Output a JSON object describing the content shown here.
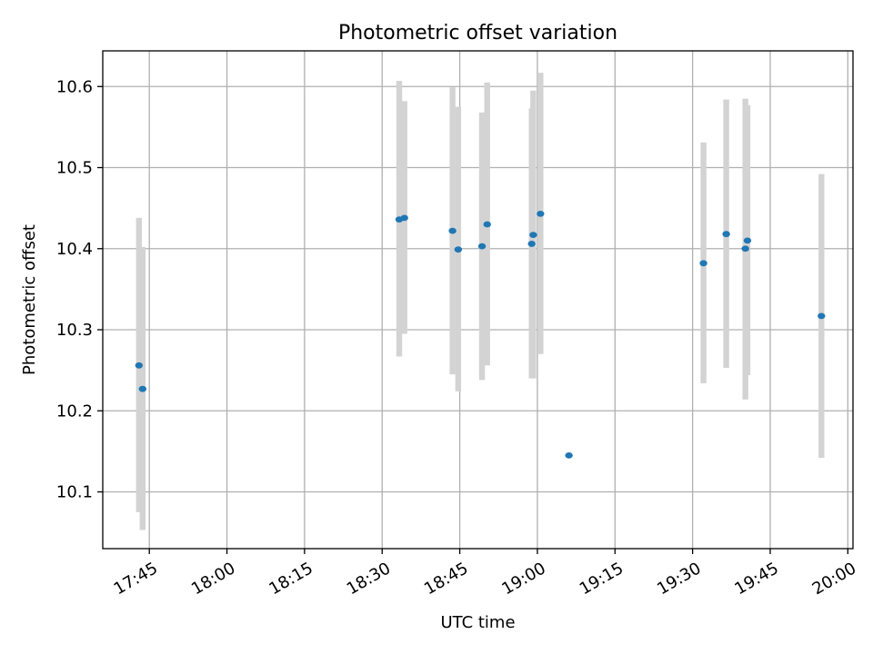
{
  "chart_data": {
    "type": "scatter",
    "title": "Photometric offset variation",
    "xlabel": "UTC time",
    "ylabel": "Photometric offset",
    "grid": true,
    "x_ticks": [
      "17:45",
      "18:00",
      "18:15",
      "18:30",
      "18:45",
      "19:00",
      "19:15",
      "19:30",
      "19:45",
      "20:00"
    ],
    "y_ticks": [
      10.1,
      10.2,
      10.3,
      10.4,
      10.5,
      10.6
    ],
    "xlim": [
      "17:36",
      "20:01"
    ],
    "ylim": [
      10.03,
      10.644
    ],
    "colors": {
      "points": "#1f77b4",
      "errorbars": "#d3d3d3",
      "grid": "#b0b0b0"
    },
    "points": [
      {
        "x": "17:43",
        "y": 10.256,
        "y_low": 10.075,
        "y_high": 10.438
      },
      {
        "x": "17:43.7",
        "y": 10.227,
        "y_low": 10.053,
        "y_high": 10.402
      },
      {
        "x": "18:33.3",
        "y": 10.436,
        "y_low": 10.267,
        "y_high": 10.607
      },
      {
        "x": "18:34.3",
        "y": 10.438,
        "y_low": 10.295,
        "y_high": 10.582
      },
      {
        "x": "18:43.6",
        "y": 10.422,
        "y_low": 10.245,
        "y_high": 10.599
      },
      {
        "x": "18:44.7",
        "y": 10.399,
        "y_low": 10.224,
        "y_high": 10.575
      },
      {
        "x": "18:49.3",
        "y": 10.403,
        "y_low": 10.238,
        "y_high": 10.568
      },
      {
        "x": "18:50.3",
        "y": 10.43,
        "y_low": 10.256,
        "y_high": 10.605
      },
      {
        "x": "18:58.9",
        "y": 10.406,
        "y_low": 10.24,
        "y_high": 10.573
      },
      {
        "x": "18:59.2",
        "y": 10.417,
        "y_low": 10.24,
        "y_high": 10.595
      },
      {
        "x": "19:00.6",
        "y": 10.443,
        "y_low": 10.27,
        "y_high": 10.617
      },
      {
        "x": "19:06.1",
        "y": 10.145,
        "y_low": 10.145,
        "y_high": 10.145
      },
      {
        "x": "19:32.1",
        "y": 10.382,
        "y_low": 10.234,
        "y_high": 10.531
      },
      {
        "x": "19:36.5",
        "y": 10.418,
        "y_low": 10.253,
        "y_high": 10.584
      },
      {
        "x": "19:40.2",
        "y": 10.4,
        "y_low": 10.214,
        "y_high": 10.585
      },
      {
        "x": "19:40.6",
        "y": 10.41,
        "y_low": 10.244,
        "y_high": 10.577
      },
      {
        "x": "19:54.9",
        "y": 10.317,
        "y_low": 10.142,
        "y_high": 10.492
      }
    ]
  }
}
